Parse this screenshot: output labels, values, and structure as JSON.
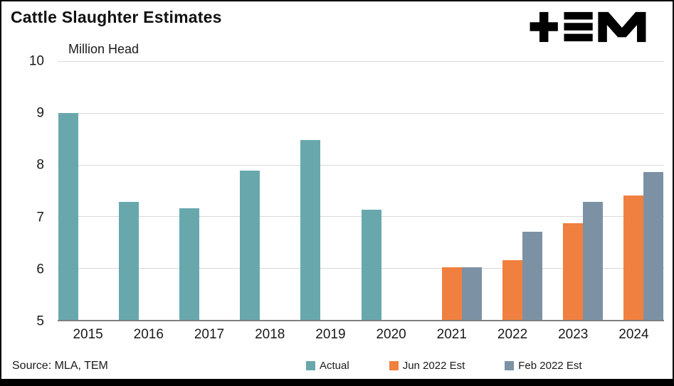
{
  "header": {
    "title": "Cattle Slaughter Estimates",
    "logo_icon": "tem-logo"
  },
  "footer": {
    "source": "Source: MLA, TEM"
  },
  "colors": {
    "actual": "#68A8AD",
    "jun_2022_est": "#F0803F",
    "feb_2022_est": "#7C92A4",
    "gridline": "#D9D9D9",
    "axis_line": "#7F7F7F",
    "logo": "#000000"
  },
  "chart_data": {
    "type": "bar",
    "title": "Cattle Slaughter Estimates",
    "xlabel": "",
    "ylabel": "Million Head",
    "ylim": [
      5,
      10
    ],
    "yticks": [
      5,
      6,
      7,
      8,
      9,
      10
    ],
    "grid": true,
    "legend_position": "bottom",
    "categories": [
      "2015",
      "2016",
      "2017",
      "2018",
      "2019",
      "2020",
      "2021",
      "2022",
      "2023",
      "2024"
    ],
    "series": [
      {
        "name": "Actual",
        "color": "#68A8AD",
        "values": [
          9.0,
          7.28,
          7.15,
          7.88,
          8.47,
          7.13,
          null,
          null,
          null,
          null
        ]
      },
      {
        "name": "Jun 2022 Est",
        "color": "#F0803F",
        "values": [
          null,
          null,
          null,
          null,
          null,
          null,
          6.01,
          6.16,
          6.87,
          7.41
        ]
      },
      {
        "name": "Feb 2022 Est",
        "color": "#7C92A4",
        "values": [
          null,
          null,
          null,
          null,
          null,
          null,
          6.01,
          6.71,
          7.28,
          7.86
        ]
      }
    ]
  }
}
